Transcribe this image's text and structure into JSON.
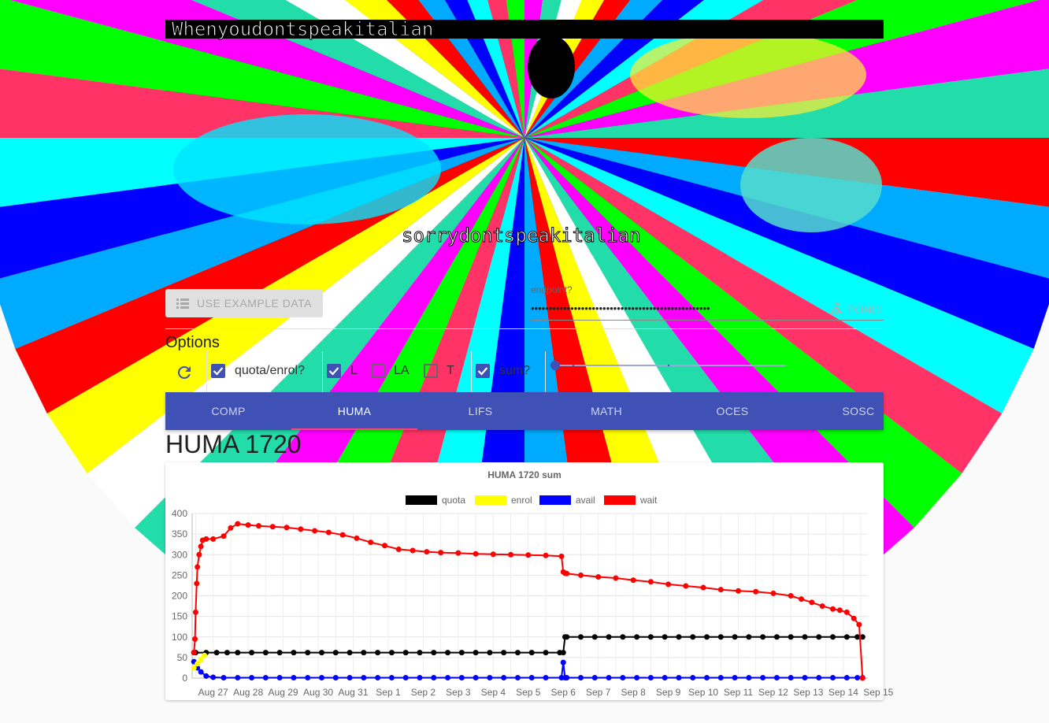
{
  "banner": {
    "top_caption": "Whenyoudontspeakitalian",
    "bottom_caption": "sorrydontspeakitalian"
  },
  "toolbar": {
    "example_label": "USE EXAMPLE DATA",
    "endpoint_label": "endpoint?",
    "endpoint_value": "••••••••••••••••••••••••••••••••••••••••••••••••••",
    "pong_label": "PONG!"
  },
  "options": {
    "title": "Options",
    "quota_enrol": {
      "label": "quota/enrol?",
      "checked": true
    },
    "L": {
      "label": "L",
      "checked": true
    },
    "LA": {
      "label": "LA",
      "checked": false
    },
    "T": {
      "label": "T",
      "checked": false
    },
    "sum": {
      "label": "sum?",
      "checked": true
    },
    "slider_value": 0
  },
  "tabs": [
    {
      "label": "COMP",
      "active": false
    },
    {
      "label": "HUMA",
      "active": true
    },
    {
      "label": "LIFS",
      "active": false
    },
    {
      "label": "MATH",
      "active": false
    },
    {
      "label": "OCES",
      "active": false
    },
    {
      "label": "SOSC",
      "active": false
    }
  ],
  "course_title": "HUMA 1720",
  "colors": {
    "primary": "#3f51b5",
    "accent": "#ff4081",
    "quota": "#000000",
    "enrol": "#ffff00",
    "avail": "#0000ff",
    "wait": "#ff0000"
  },
  "chart_data": {
    "type": "line",
    "title": "HUMA 1720 sum",
    "legend_position": "top",
    "grid": true,
    "ylim": [
      0,
      400
    ],
    "yticks": [
      0,
      50,
      100,
      150,
      200,
      250,
      300,
      350,
      400
    ],
    "xlim": [
      -0.1,
      19.2
    ],
    "xtick_labels": [
      "Aug 27",
      "Aug 28",
      "Aug 29",
      "Aug 30",
      "Aug 31",
      "Sep 1",
      "Sep 2",
      "Sep 3",
      "Sep 4",
      "Sep 5",
      "Sep 6",
      "Sep 7",
      "Sep 8",
      "Sep 9",
      "Sep 10",
      "Sep 11",
      "Sep 12",
      "Sep 13",
      "Sep 14",
      "Sep 15"
    ],
    "series": [
      {
        "name": "quota",
        "color": "#000000",
        "x": [
          -0.05,
          0,
          0.3,
          0.6,
          0.9,
          1.2,
          1.6,
          2.0,
          2.4,
          2.8,
          3.2,
          3.6,
          4.0,
          4.4,
          4.8,
          5.2,
          5.6,
          6.0,
          6.4,
          6.8,
          7.2,
          7.6,
          8.0,
          8.4,
          8.8,
          9.2,
          9.6,
          10.0,
          10.4,
          10.5,
          10.55,
          10.6,
          11.0,
          11.4,
          11.8,
          12.2,
          12.6,
          13.0,
          13.4,
          13.8,
          14.2,
          14.6,
          15.0,
          15.4,
          15.8,
          16.2,
          16.6,
          17.0,
          17.4,
          17.8,
          18.2,
          18.6,
          18.9,
          19.05
        ],
        "y": [
          62,
          62,
          62,
          62,
          62,
          62,
          62,
          62,
          62,
          62,
          62,
          62,
          62,
          62,
          62,
          62,
          62,
          62,
          62,
          62,
          62,
          62,
          62,
          62,
          62,
          62,
          62,
          62,
          62,
          62,
          100,
          100,
          100,
          100,
          100,
          100,
          100,
          100,
          100,
          100,
          100,
          100,
          100,
          100,
          100,
          100,
          100,
          100,
          100,
          100,
          100,
          100,
          100,
          100
        ]
      },
      {
        "name": "enrol",
        "color": "#ffff00",
        "x": [
          -0.05,
          0.05,
          0.15,
          0.25
        ],
        "y": [
          25,
          35,
          45,
          55
        ]
      },
      {
        "name": "avail",
        "color": "#0000ff",
        "x": [
          -0.05,
          0.05,
          0.15,
          0.3,
          0.5,
          0.8,
          1.2,
          1.6,
          2.0,
          2.4,
          2.8,
          3.2,
          3.6,
          4.0,
          4.4,
          4.8,
          5.2,
          5.6,
          6.0,
          6.4,
          6.8,
          7.2,
          7.6,
          8.0,
          8.4,
          8.8,
          9.2,
          9.6,
          10.0,
          10.45,
          10.5,
          10.55,
          10.6,
          11.0,
          11.4,
          11.8,
          12.2,
          12.6,
          13.0,
          13.4,
          13.8,
          14.2,
          14.6,
          15.0,
          15.4,
          15.8,
          16.2,
          16.6,
          17.0,
          17.4,
          17.8,
          18.2,
          18.6,
          18.9,
          19.05
        ],
        "y": [
          40,
          25,
          15,
          5,
          2,
          1,
          1,
          1,
          1,
          1,
          1,
          1,
          1,
          1,
          1,
          1,
          1,
          1,
          1,
          1,
          1,
          1,
          1,
          1,
          1,
          1,
          1,
          1,
          1,
          1,
          38,
          1,
          1,
          1,
          1,
          1,
          1,
          1,
          1,
          1,
          1,
          1,
          1,
          1,
          1,
          1,
          1,
          1,
          1,
          1,
          1,
          1,
          1,
          1,
          1
        ]
      },
      {
        "name": "wait",
        "color": "#ff0000",
        "x": [
          -0.05,
          -0.02,
          0.0,
          0.03,
          0.05,
          0.1,
          0.15,
          0.2,
          0.3,
          0.5,
          0.8,
          1.0,
          1.2,
          1.5,
          1.8,
          2.2,
          2.6,
          3.0,
          3.4,
          3.8,
          4.2,
          4.6,
          5.0,
          5.4,
          5.8,
          6.2,
          6.6,
          7.0,
          7.5,
          8.0,
          8.5,
          9.0,
          9.5,
          10.0,
          10.45,
          10.5,
          10.55,
          10.6,
          11.0,
          11.5,
          12.0,
          12.5,
          13.0,
          13.5,
          14.0,
          14.5,
          15.0,
          15.5,
          16.0,
          16.5,
          17.0,
          17.3,
          17.6,
          17.9,
          18.2,
          18.4,
          18.6,
          18.8,
          18.95,
          19.05
        ],
        "y": [
          62,
          95,
          160,
          230,
          270,
          300,
          320,
          335,
          338,
          338,
          345,
          365,
          375,
          372,
          370,
          368,
          366,
          362,
          358,
          354,
          348,
          340,
          330,
          322,
          313,
          310,
          307,
          305,
          304,
          302,
          301,
          300,
          299,
          298,
          296,
          258,
          255,
          254,
          250,
          246,
          243,
          238,
          234,
          228,
          224,
          220,
          215,
          212,
          210,
          206,
          200,
          192,
          184,
          175,
          168,
          165,
          160,
          145,
          130,
          0
        ]
      }
    ]
  }
}
